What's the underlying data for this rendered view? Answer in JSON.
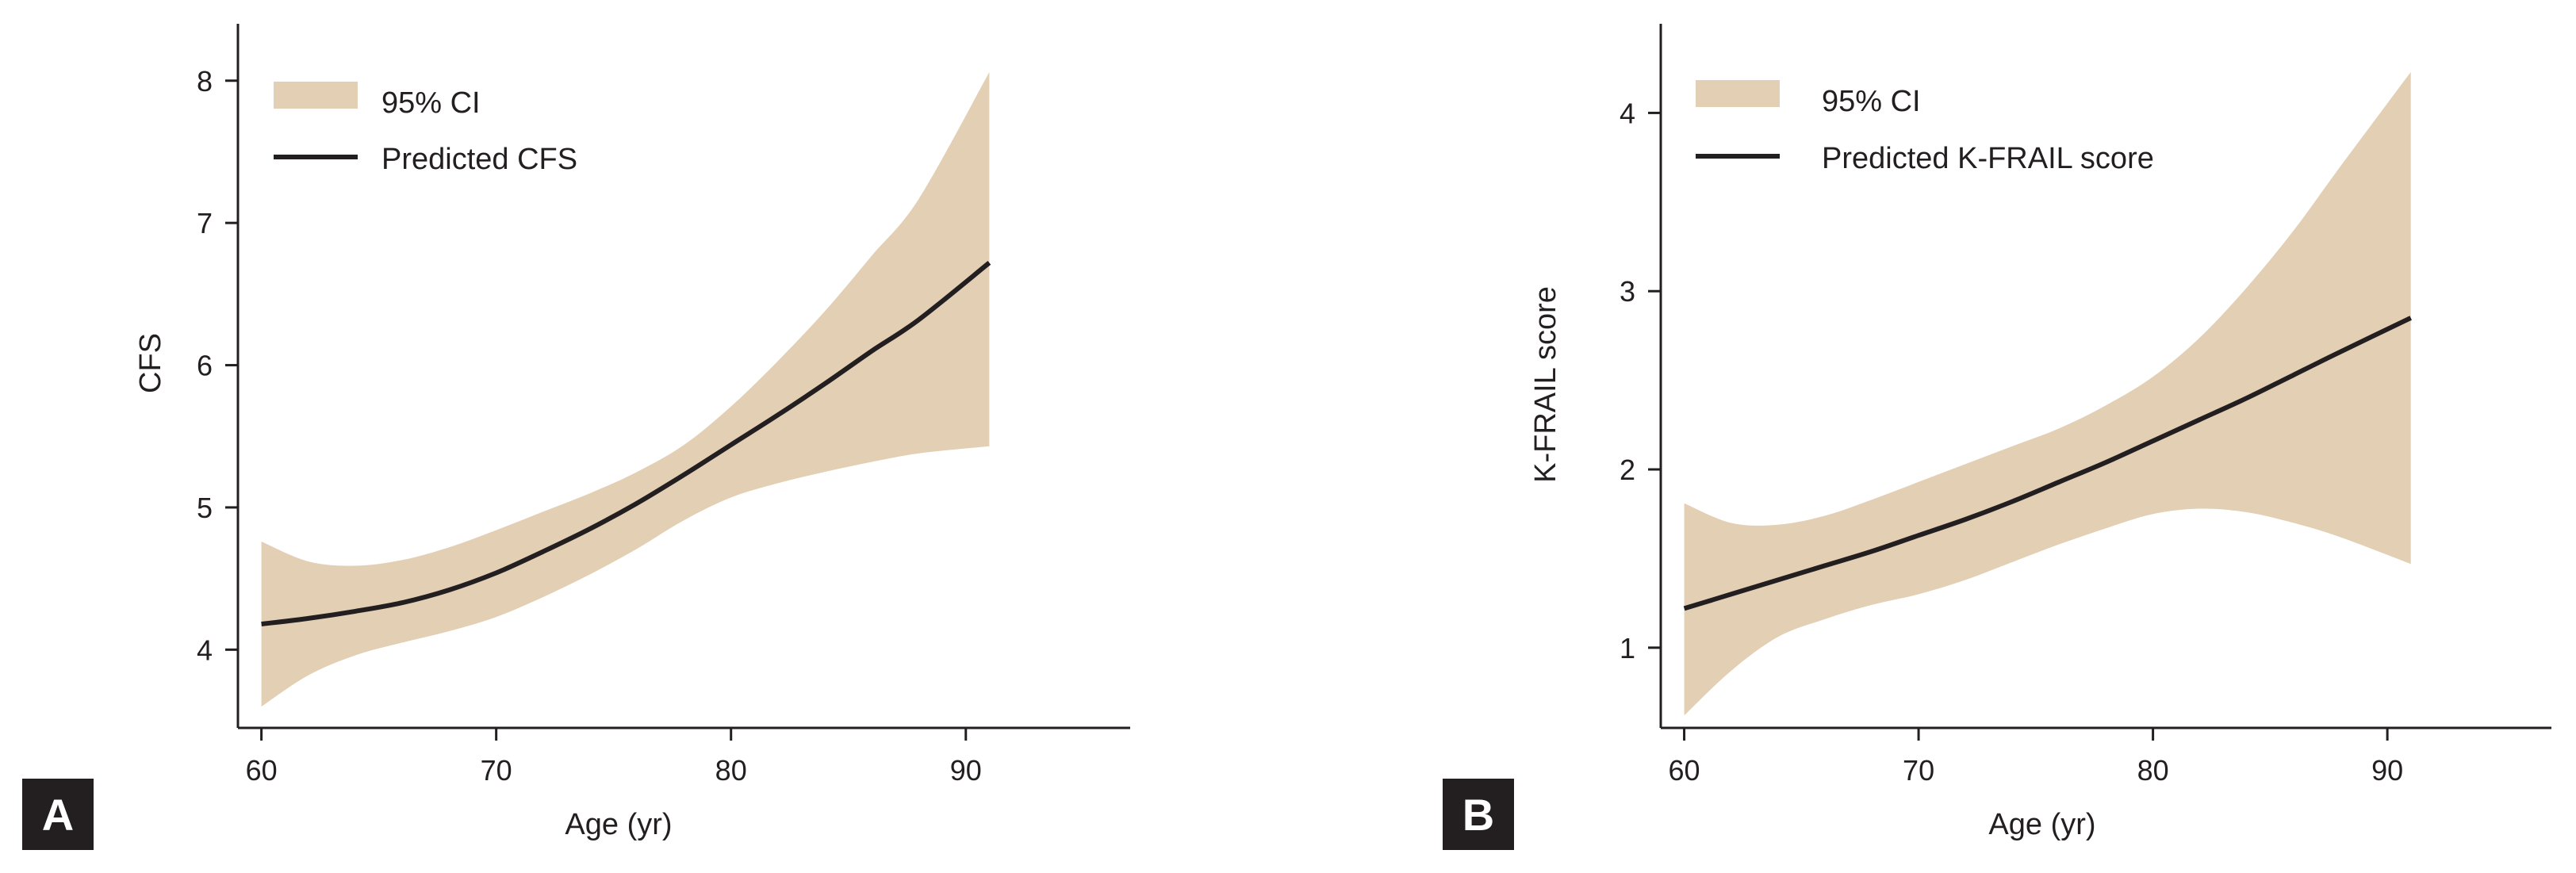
{
  "colors": {
    "ci_band": "#e2cfb4",
    "line": "#231f20",
    "badge_bg": "#231f20",
    "badge_text": "#ffffff",
    "axis": "#231f20"
  },
  "chart_data": [
    {
      "type": "area",
      "panel_label": "A",
      "title": "",
      "xlabel": "Age (yr)",
      "ylabel": "CFS",
      "xlim": [
        59,
        97
      ],
      "ylim": [
        3.45,
        8.4
      ],
      "xticks": [
        60,
        70,
        80,
        90
      ],
      "yticks": [
        4,
        5,
        6,
        7,
        8
      ],
      "legend": {
        "position": "top-left",
        "ci_label": "95% CI",
        "line_label": "Predicted CFS"
      },
      "x": [
        60,
        62,
        64,
        66,
        68,
        70,
        72,
        74,
        76,
        78,
        80,
        82,
        84,
        86,
        88,
        91
      ],
      "series": [
        {
          "name": "Predicted CFS",
          "values": [
            4.18,
            4.22,
            4.27,
            4.33,
            4.42,
            4.54,
            4.69,
            4.85,
            5.03,
            5.23,
            5.44,
            5.65,
            5.87,
            6.1,
            6.32,
            6.72
          ]
        },
        {
          "name": "95% CI upper",
          "values": [
            4.76,
            4.62,
            4.59,
            4.63,
            4.72,
            4.84,
            4.97,
            5.1,
            5.25,
            5.44,
            5.71,
            6.03,
            6.38,
            6.77,
            7.17,
            8.06
          ]
        },
        {
          "name": "95% CI lower",
          "values": [
            3.6,
            3.82,
            3.96,
            4.05,
            4.13,
            4.23,
            4.37,
            4.53,
            4.71,
            4.91,
            5.07,
            5.17,
            5.25,
            5.32,
            5.38,
            5.43
          ]
        }
      ]
    },
    {
      "type": "area",
      "panel_label": "B",
      "title": "",
      "xlabel": "Age (yr)",
      "ylabel": "K-FRAIL score",
      "xlim": [
        59,
        97
      ],
      "ylim": [
        0.55,
        4.5
      ],
      "xticks": [
        60,
        70,
        80,
        90
      ],
      "yticks": [
        1,
        2,
        3,
        4
      ],
      "legend": {
        "position": "top-left",
        "ci_label": "95% CI",
        "line_label": "Predicted K-FRAIL score"
      },
      "x": [
        60,
        62,
        64,
        66,
        68,
        70,
        72,
        74,
        76,
        78,
        80,
        82,
        84,
        86,
        88,
        91
      ],
      "series": [
        {
          "name": "Predicted K-FRAIL score",
          "values": [
            1.22,
            1.3,
            1.38,
            1.46,
            1.54,
            1.63,
            1.72,
            1.82,
            1.93,
            2.04,
            2.16,
            2.28,
            2.4,
            2.53,
            2.66,
            2.85
          ]
        },
        {
          "name": "95% CI upper",
          "values": [
            1.81,
            1.7,
            1.69,
            1.74,
            1.83,
            1.93,
            2.03,
            2.13,
            2.23,
            2.36,
            2.52,
            2.74,
            3.02,
            3.34,
            3.7,
            4.23
          ]
        },
        {
          "name": "95% CI lower",
          "values": [
            0.62,
            0.87,
            1.06,
            1.16,
            1.24,
            1.3,
            1.38,
            1.48,
            1.58,
            1.67,
            1.75,
            1.78,
            1.76,
            1.7,
            1.62,
            1.47
          ]
        }
      ]
    }
  ]
}
